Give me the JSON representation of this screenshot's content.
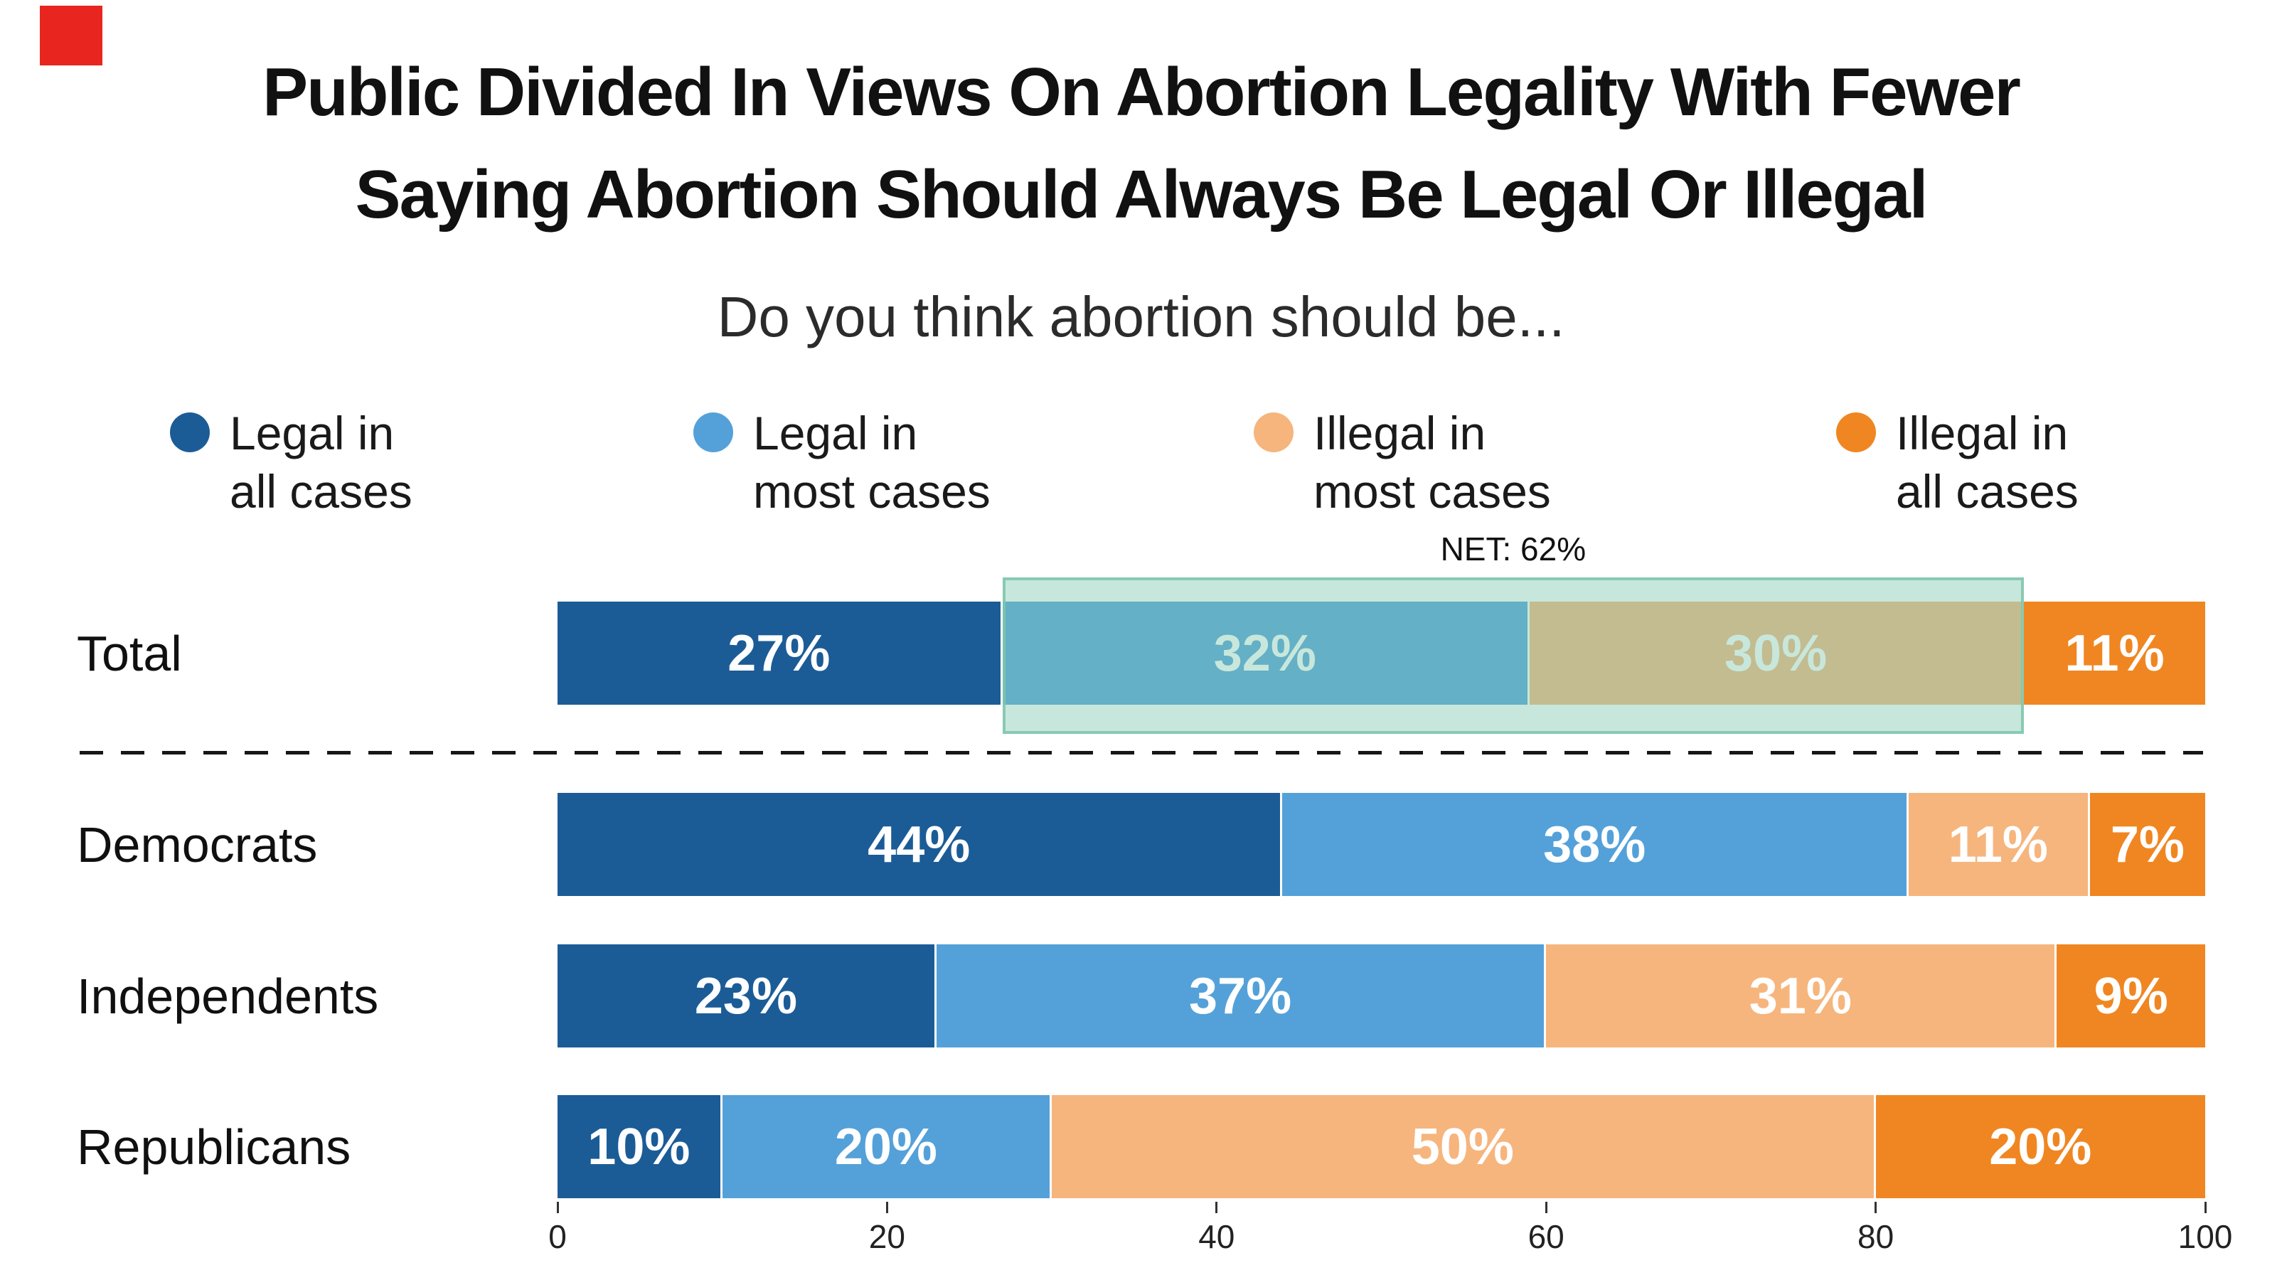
{
  "brand": {
    "logo_color": "#e8251f"
  },
  "title": {
    "line1": "Public Divided In Views On Abortion Legality With Fewer",
    "line2": "Saying Abortion Should Always Be Legal Or Illegal"
  },
  "subtitle": "Do you think abortion should be...",
  "legend": [
    {
      "label_line1": "Legal in",
      "label_line2": "all cases",
      "color": "#1b5c97"
    },
    {
      "label_line1": "Legal in",
      "label_line2": "most cases",
      "color": "#54a1d9"
    },
    {
      "label_line1": "Illegal in",
      "label_line2": "most cases",
      "color": "#f6b57d"
    },
    {
      "label_line1": "Illegal in",
      "label_line2": "all cases",
      "color": "#f08621"
    }
  ],
  "net_annotation": {
    "label": "NET: 62%",
    "start_value": 27,
    "end_value": 89,
    "highlight_color": "#7dc6ac"
  },
  "chart_data": {
    "type": "bar",
    "orientation": "horizontal",
    "stacked": true,
    "title": "Public Divided In Views On Abortion Legality With Fewer Saying Abortion Should Always Be Legal Or Illegal",
    "subtitle": "Do you think abortion should be...",
    "categories": [
      "Total",
      "Democrats",
      "Independents",
      "Republicans"
    ],
    "series": [
      {
        "name": "Legal in all cases",
        "color": "#1b5c97",
        "values": [
          27,
          44,
          23,
          10
        ]
      },
      {
        "name": "Legal in most cases",
        "color": "#54a1d9",
        "values": [
          32,
          38,
          37,
          20
        ]
      },
      {
        "name": "Illegal in most cases",
        "color": "#f6b57d",
        "values": [
          30,
          11,
          31,
          50
        ]
      },
      {
        "name": "Illegal in all cases",
        "color": "#f08621",
        "values": [
          11,
          7,
          9,
          20
        ]
      }
    ],
    "value_suffix": "%",
    "x_axis": {
      "range": [
        0,
        100
      ],
      "ticks": [
        0,
        20,
        40,
        60,
        80,
        100
      ]
    },
    "annotations": [
      {
        "text": "NET: 62%",
        "row": "Total",
        "span": [
          27,
          89
        ]
      }
    ],
    "legend_position": "top",
    "grid": false
  }
}
